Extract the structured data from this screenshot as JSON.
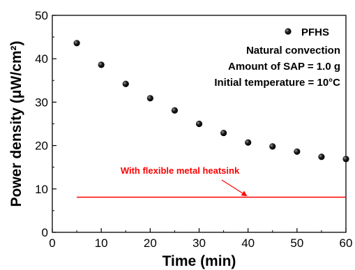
{
  "chart_data": {
    "type": "scatter",
    "xlabel": "Time (min)",
    "ylabel": "Power density (μW/cm²)",
    "xlim": [
      0,
      60
    ],
    "ylim": [
      0,
      50
    ],
    "x_ticks": [
      "0",
      "10",
      "20",
      "30",
      "40",
      "50",
      "60"
    ],
    "y_ticks": [
      "0",
      "10",
      "20",
      "30",
      "40",
      "50"
    ],
    "grid": false,
    "legend_position": "top-right",
    "series": [
      {
        "name": "PFHS",
        "marker": "circle",
        "color": "#000000",
        "points": [
          {
            "x": 5,
            "y": 43.6
          },
          {
            "x": 10,
            "y": 38.6
          },
          {
            "x": 15,
            "y": 34.2
          },
          {
            "x": 20,
            "y": 30.9
          },
          {
            "x": 25,
            "y": 28.1
          },
          {
            "x": 30,
            "y": 25.0
          },
          {
            "x": 35,
            "y": 22.9
          },
          {
            "x": 40,
            "y": 20.7
          },
          {
            "x": 45,
            "y": 19.8
          },
          {
            "x": 50,
            "y": 18.6
          },
          {
            "x": 55,
            "y": 17.4
          },
          {
            "x": 60,
            "y": 16.9
          }
        ]
      }
    ],
    "reference_line": {
      "label": "With flexible metal heatsink",
      "y": 8.1,
      "x_start": 5,
      "x_end": 60,
      "color": "#ff0000",
      "arrow_target_x": 40
    },
    "conditions": [
      "Natural convection",
      "Amount of SAP = 1.0 g",
      "Initial temperature = 10°C"
    ]
  }
}
